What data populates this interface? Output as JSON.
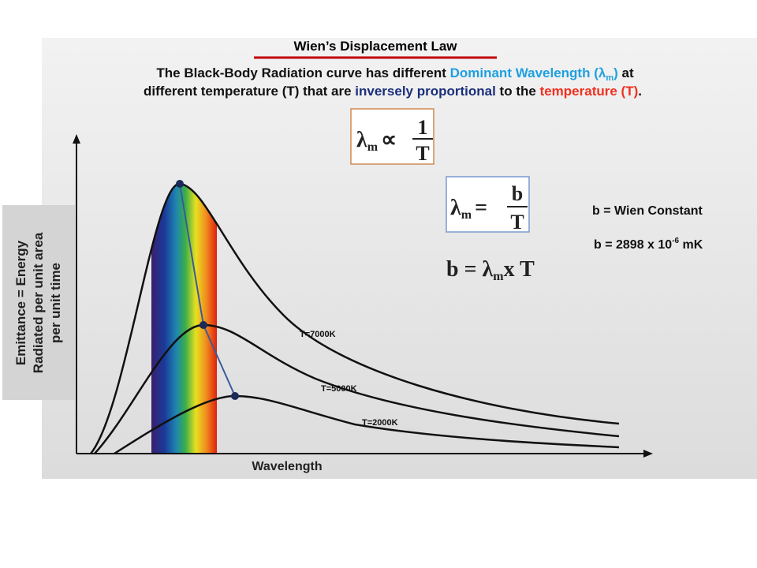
{
  "header": {
    "title": "Wien’s Displacement Law"
  },
  "intro": {
    "line1": [
      "The Black-Body Radiation curve has different ",
      "Dominant Wavelength (λ",
      "m",
      ")",
      " at"
    ],
    "line2": [
      "different temperature (T) that are ",
      "inversely proportional",
      " to the ",
      "temperature (T)",
      "."
    ]
  },
  "formulas": [
    {
      "lhs": "λ",
      "sub": "m",
      "op": "∝",
      "num": "1",
      "den": "T"
    },
    {
      "lhs": "λ",
      "sub": "m",
      "op": "=",
      "num": "b",
      "den": "T"
    },
    {
      "pre": "b = λ",
      "sub": "m",
      "post": "x T"
    }
  ],
  "constants": {
    "definition": "b = Wien Constant",
    "value": [
      "b = 2898 x 10",
      "-6",
      " mK"
    ]
  },
  "axes": {
    "y_label": [
      "Emittance = Energy",
      "Radiated per unit area",
      "per unit time"
    ],
    "x_label": "Wavelength"
  },
  "curves": [
    {
      "label": "T=7000K"
    },
    {
      "label": "T=5000K"
    },
    {
      "label": "T=2000K"
    }
  ]
}
